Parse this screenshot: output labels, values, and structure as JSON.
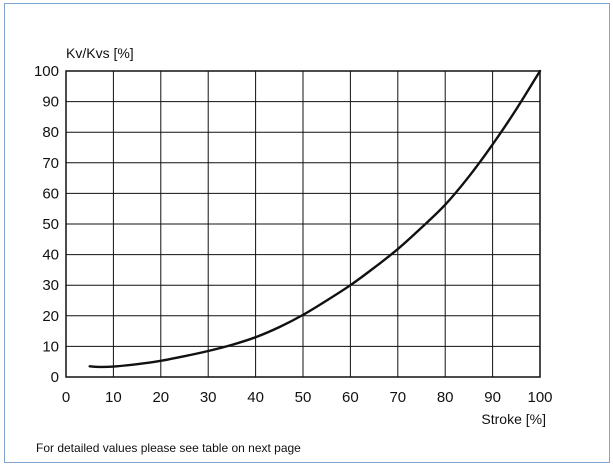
{
  "chart_data": {
    "type": "line",
    "title": "",
    "xlabel": "Stroke [%]",
    "ylabel": "Kv/Kvs [%]",
    "xlim": [
      0,
      100
    ],
    "ylim": [
      0,
      100
    ],
    "x_ticks": [
      0,
      10,
      20,
      30,
      40,
      50,
      60,
      70,
      80,
      90,
      100
    ],
    "y_ticks": [
      0,
      10,
      20,
      30,
      40,
      50,
      60,
      70,
      80,
      90,
      100
    ],
    "grid": true,
    "legend": "none",
    "series": [
      {
        "x": [
          5,
          7,
          10,
          15,
          20,
          25,
          30,
          35,
          40,
          45,
          50,
          55,
          60,
          65,
          70,
          75,
          80,
          85,
          90,
          95,
          100
        ],
        "values": [
          3.5,
          3.3,
          3.4,
          4.2,
          5.3,
          6.8,
          8.5,
          10.5,
          13.0,
          16.3,
          20.3,
          25.0,
          30.0,
          35.7,
          41.8,
          48.8,
          56.3,
          65.5,
          76.0,
          87.5,
          100.0
        ],
        "color": "#111111"
      }
    ]
  },
  "footnote": "For detailed values please see table on next page",
  "colors": {
    "frame": "#7ea6cf",
    "grid": "#111111",
    "curve": "#111111"
  }
}
